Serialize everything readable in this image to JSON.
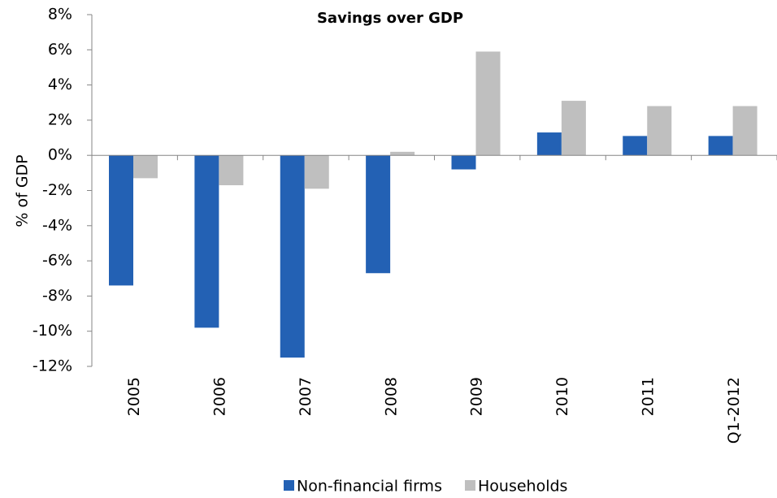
{
  "chart_data": {
    "type": "bar",
    "title": "Savings over GDP",
    "y_label": "% of GDP",
    "categories": [
      "2005",
      "2006",
      "2007",
      "2008",
      "2009",
      "2010",
      "2011",
      "Q1-2012"
    ],
    "series": [
      {
        "name": "Non-financial firms",
        "color": "#2361b4",
        "values": [
          -7.4,
          -9.8,
          -11.5,
          -6.7,
          -0.8,
          1.3,
          1.1,
          1.1
        ]
      },
      {
        "name": "Households",
        "color": "#bfbfbf",
        "values": [
          -1.3,
          -1.7,
          -1.9,
          0.2,
          5.9,
          3.1,
          2.8,
          2.8
        ]
      }
    ],
    "ylim": [
      -12,
      8
    ],
    "yticks": [
      {
        "value": -12,
        "label": "-12%"
      },
      {
        "value": -10,
        "label": "-10%"
      },
      {
        "value": -8,
        "label": "-8%"
      },
      {
        "value": -6,
        "label": "-6%"
      },
      {
        "value": -4,
        "label": "-4%"
      },
      {
        "value": -2,
        "label": "-2%"
      },
      {
        "value": 0,
        "label": "0%"
      },
      {
        "value": 2,
        "label": "2%"
      },
      {
        "value": 4,
        "label": "4%"
      },
      {
        "value": 6,
        "label": "6%"
      },
      {
        "value": 8,
        "label": "8%"
      }
    ],
    "legend": "bottom"
  }
}
